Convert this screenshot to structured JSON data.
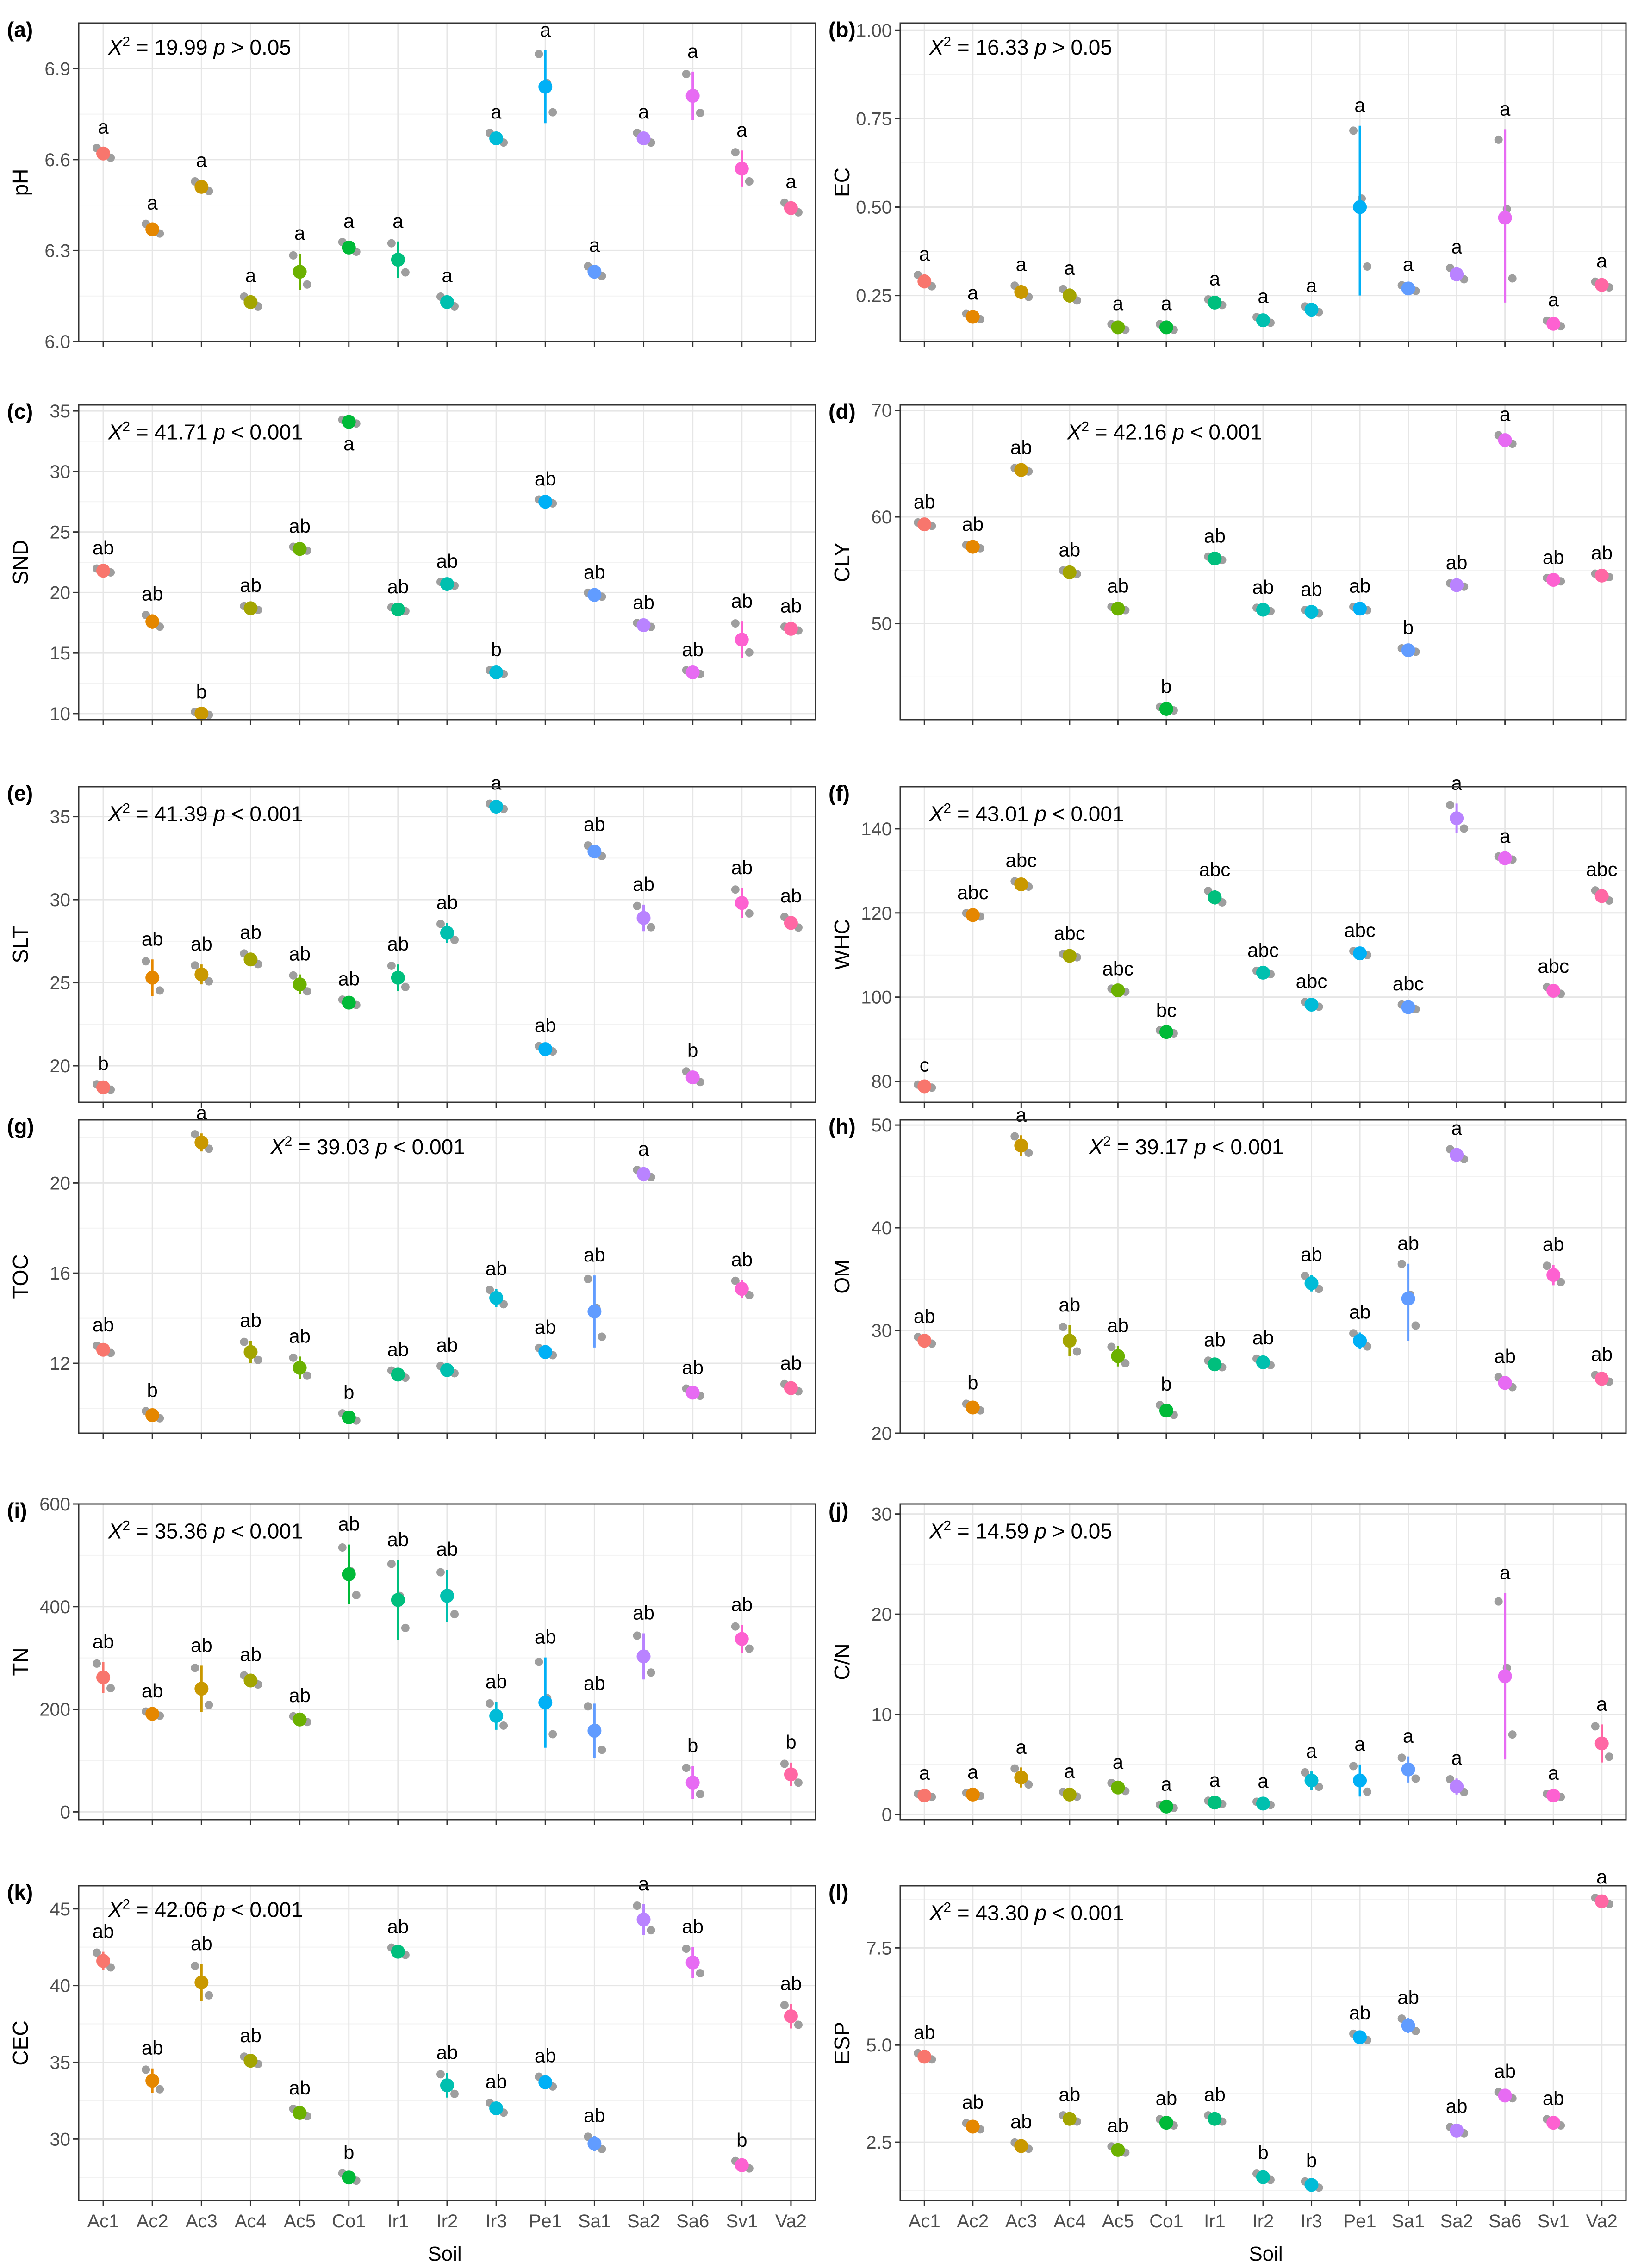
{
  "figure": {
    "x_axis_title": "Soil",
    "soils": [
      "Ac1",
      "Ac2",
      "Ac3",
      "Ac4",
      "Ac5",
      "Co1",
      "Ir1",
      "Ir2",
      "Ir3",
      "Pe1",
      "Sa1",
      "Sa2",
      "Sa6",
      "Sv1",
      "Va2"
    ],
    "soil_colors": [
      "#F8766D",
      "#E58700",
      "#C99800",
      "#A3A500",
      "#6BB100",
      "#00BA38",
      "#00BF7D",
      "#00C0AF",
      "#00BCD8",
      "#00B0F6",
      "#619CFF",
      "#B983FF",
      "#E76BF3",
      "#FD61D1",
      "#FF67A4"
    ],
    "raw_point_color": "#9e9e9e"
  },
  "chart_data": [
    {
      "type": "scatter",
      "panel": "(a)",
      "ylabel": "pH",
      "ylim": [
        6.0,
        7.05
      ],
      "yticks": [
        6.0,
        6.3,
        6.6,
        6.9
      ],
      "tick_labels": [
        "6.0",
        "6.3",
        "6.6",
        "6.9"
      ],
      "stat": {
        "symbol": "X",
        "sup": "2",
        "value": "= 19.99",
        "p": "p",
        "cmp": "> 0.05"
      },
      "means": [
        6.62,
        6.37,
        6.51,
        6.13,
        6.23,
        6.31,
        6.27,
        6.13,
        6.67,
        6.84,
        6.23,
        6.67,
        6.81,
        6.57,
        6.44
      ],
      "lower": [
        6.6,
        6.35,
        6.49,
        6.11,
        6.17,
        6.29,
        6.21,
        6.11,
        6.65,
        6.72,
        6.21,
        6.65,
        6.73,
        6.51,
        6.42
      ],
      "upper": [
        6.64,
        6.39,
        6.53,
        6.15,
        6.29,
        6.33,
        6.33,
        6.15,
        6.69,
        6.96,
        6.25,
        6.69,
        6.89,
        6.63,
        6.46
      ],
      "letters": [
        "a",
        "a",
        "a",
        "a",
        "a",
        "a",
        "a",
        "a",
        "a",
        "a",
        "a",
        "a",
        "a",
        "a",
        "a"
      ]
    },
    {
      "type": "scatter",
      "panel": "(b)",
      "ylabel": "EC",
      "ylim": [
        0.12,
        1.02
      ],
      "yticks": [
        0.25,
        0.5,
        0.75,
        1.0
      ],
      "tick_labels": [
        "0.25",
        "0.50",
        "0.75",
        "1.00"
      ],
      "stat": {
        "symbol": "X",
        "sup": "2",
        "value": "= 16.33",
        "p": "p",
        "cmp": "> 0.05"
      },
      "means": [
        0.29,
        0.19,
        0.26,
        0.25,
        0.16,
        0.16,
        0.23,
        0.18,
        0.21,
        0.5,
        0.27,
        0.31,
        0.47,
        0.17,
        0.28
      ],
      "lower": [
        0.27,
        0.18,
        0.24,
        0.23,
        0.15,
        0.15,
        0.22,
        0.17,
        0.2,
        0.25,
        0.26,
        0.29,
        0.23,
        0.16,
        0.27
      ],
      "upper": [
        0.31,
        0.2,
        0.28,
        0.27,
        0.17,
        0.17,
        0.24,
        0.19,
        0.22,
        0.73,
        0.28,
        0.33,
        0.72,
        0.18,
        0.29
      ],
      "letters": [
        "a",
        "a",
        "a",
        "a",
        "a",
        "a",
        "a",
        "a",
        "a",
        "a",
        "a",
        "a",
        "a",
        "a",
        "a"
      ]
    },
    {
      "type": "scatter",
      "panel": "(c)",
      "ylabel": "SND",
      "ylim": [
        9.5,
        35.5
      ],
      "yticks": [
        10,
        15,
        20,
        25,
        30,
        35
      ],
      "tick_labels": [
        "10",
        "15",
        "20",
        "25",
        "30",
        "35"
      ],
      "stat": {
        "symbol": "X",
        "sup": "2",
        "value": "= 41.71",
        "p": "p",
        "cmp": "< 0.001"
      },
      "means": [
        21.8,
        17.6,
        10.0,
        18.7,
        23.6,
        34.1,
        18.6,
        20.7,
        13.4,
        27.5,
        19.8,
        17.3,
        13.4,
        16.1,
        17.0
      ],
      "lower": [
        21.6,
        17.0,
        9.9,
        18.5,
        23.4,
        33.9,
        18.4,
        20.5,
        13.2,
        27.3,
        19.6,
        17.1,
        13.2,
        14.6,
        16.8
      ],
      "upper": [
        22.0,
        18.2,
        10.1,
        18.9,
        23.8,
        34.3,
        18.8,
        20.9,
        13.6,
        27.7,
        20.0,
        17.5,
        13.6,
        17.6,
        17.2
      ],
      "letters": [
        "ab",
        "ab",
        "b",
        "ab",
        "ab",
        "a",
        "ab",
        "ab",
        "b",
        "ab",
        "ab",
        "ab",
        "ab",
        "ab",
        "ab"
      ]
    },
    {
      "type": "scatter",
      "panel": "(d)",
      "ylabel": "CLY",
      "ylim": [
        41,
        70.5
      ],
      "yticks": [
        50,
        60,
        70
      ],
      "tick_labels": [
        "50",
        "60",
        "70"
      ],
      "stat": {
        "symbol": "X",
        "sup": "2",
        "value": "= 42.16",
        "p": "p",
        "cmp": "< 0.001"
      },
      "means": [
        59.3,
        57.2,
        64.4,
        54.8,
        51.4,
        42.0,
        56.1,
        51.3,
        51.1,
        51.4,
        47.5,
        53.6,
        67.2,
        54.1,
        54.5
      ],
      "lower": [
        59.1,
        57.0,
        64.2,
        54.6,
        51.2,
        41.8,
        55.9,
        51.1,
        50.9,
        51.2,
        47.3,
        53.4,
        66.7,
        53.9,
        54.3
      ],
      "upper": [
        59.5,
        57.4,
        64.6,
        55.0,
        51.6,
        42.2,
        56.3,
        51.5,
        51.3,
        51.6,
        47.7,
        53.8,
        67.7,
        54.3,
        54.7
      ],
      "letters": [
        "ab",
        "ab",
        "ab",
        "ab",
        "ab",
        "b",
        "ab",
        "ab",
        "ab",
        "ab",
        "b",
        "ab",
        "a",
        "ab",
        "ab"
      ]
    },
    {
      "type": "scatter",
      "panel": "(e)",
      "ylabel": "SLT",
      "ylim": [
        17.8,
        36.8
      ],
      "yticks": [
        20,
        25,
        30,
        35
      ],
      "tick_labels": [
        "20",
        "25",
        "30",
        "35"
      ],
      "stat": {
        "symbol": "X",
        "sup": "2",
        "value": "= 41.39",
        "p": "p",
        "cmp": "< 0.001"
      },
      "means": [
        18.7,
        25.3,
        25.5,
        26.4,
        24.9,
        23.8,
        25.3,
        28.0,
        35.6,
        21.0,
        32.9,
        28.9,
        19.3,
        29.8,
        28.6
      ],
      "lower": [
        18.5,
        24.2,
        24.9,
        26.0,
        24.3,
        23.6,
        24.5,
        27.4,
        35.4,
        20.8,
        32.5,
        28.1,
        18.9,
        28.9,
        28.2
      ],
      "upper": [
        18.9,
        26.4,
        26.1,
        26.8,
        25.5,
        24.0,
        26.1,
        28.6,
        35.8,
        21.2,
        33.3,
        29.7,
        19.7,
        30.7,
        29.0
      ],
      "letters": [
        "b",
        "ab",
        "ab",
        "ab",
        "ab",
        "ab",
        "ab",
        "ab",
        "a",
        "ab",
        "ab",
        "ab",
        "b",
        "ab",
        "ab"
      ]
    },
    {
      "type": "scatter",
      "panel": "(f)",
      "ylabel": "WHC",
      "ylim": [
        75,
        150
      ],
      "yticks": [
        80,
        100,
        120,
        140
      ],
      "tick_labels": [
        "80",
        "100",
        "120",
        "140"
      ],
      "stat": {
        "symbol": "X",
        "sup": "2",
        "value": "= 43.01",
        "p": "p",
        "cmp": "< 0.001"
      },
      "means": [
        78.8,
        119.5,
        126.8,
        109.8,
        101.6,
        91.7,
        123.7,
        105.8,
        98.2,
        110.4,
        97.6,
        142.5,
        133.0,
        101.5,
        124.0
      ],
      "lower": [
        78.6,
        119.0,
        126.0,
        109.3,
        101.3,
        91.4,
        122.0,
        105.3,
        97.5,
        109.8,
        96.9,
        139.0,
        132.6,
        100.5,
        122.5
      ],
      "upper": [
        79.0,
        120.0,
        127.6,
        110.3,
        101.9,
        92.0,
        125.4,
        106.3,
        98.9,
        111.0,
        98.3,
        146.0,
        133.4,
        102.5,
        125.5
      ],
      "letters": [
        "c",
        "abc",
        "abc",
        "abc",
        "abc",
        "bc",
        "abc",
        "abc",
        "abc",
        "abc",
        "abc",
        "a",
        "a",
        "abc",
        "abc"
      ]
    },
    {
      "type": "scatter",
      "panel": "(g)",
      "ylabel": "TOC",
      "ylim": [
        8.9,
        22.8
      ],
      "yticks": [
        12,
        16,
        20
      ],
      "tick_labels": [
        "12",
        "16",
        "20"
      ],
      "stat": {
        "symbol": "X",
        "sup": "2",
        "value": "= 39.03",
        "p": "p",
        "cmp": "< 0.001"
      },
      "means": [
        12.6,
        9.7,
        21.8,
        12.5,
        11.8,
        9.6,
        11.5,
        11.7,
        14.9,
        12.5,
        14.3,
        20.4,
        10.7,
        15.3,
        10.9
      ],
      "lower": [
        12.4,
        9.5,
        21.4,
        12.0,
        11.3,
        9.4,
        11.3,
        11.5,
        14.5,
        12.3,
        12.7,
        20.2,
        10.5,
        14.9,
        10.7
      ],
      "upper": [
        12.8,
        9.9,
        22.2,
        13.0,
        12.3,
        9.8,
        11.7,
        11.9,
        15.3,
        12.7,
        15.9,
        20.6,
        10.9,
        15.7,
        11.1
      ],
      "letters": [
        "ab",
        "b",
        "a",
        "ab",
        "ab",
        "b",
        "ab",
        "ab",
        "ab",
        "ab",
        "ab",
        "a",
        "ab",
        "ab",
        "ab"
      ]
    },
    {
      "type": "scatter",
      "panel": "(h)",
      "ylabel": "OM",
      "ylim": [
        20,
        50.5
      ],
      "yticks": [
        20,
        30,
        40,
        50
      ],
      "tick_labels": [
        "20",
        "30",
        "40",
        "50"
      ],
      "stat": {
        "symbol": "X",
        "sup": "2",
        "value": "= 39.17",
        "p": "p",
        "cmp": "< 0.001"
      },
      "means": [
        29.0,
        22.5,
        48.0,
        29.0,
        27.5,
        22.2,
        26.7,
        26.9,
        34.6,
        29.0,
        33.1,
        47.1,
        24.9,
        35.4,
        25.3
      ],
      "lower": [
        28.6,
        22.1,
        47.0,
        27.5,
        26.5,
        21.6,
        26.3,
        26.5,
        33.8,
        28.2,
        29.0,
        46.5,
        24.3,
        34.4,
        24.9
      ],
      "upper": [
        29.4,
        22.9,
        49.0,
        30.5,
        28.5,
        22.8,
        27.1,
        27.3,
        35.4,
        29.8,
        36.5,
        47.7,
        25.5,
        36.4,
        25.7
      ],
      "letters": [
        "ab",
        "b",
        "a",
        "ab",
        "ab",
        "b",
        "ab",
        "ab",
        "ab",
        "ab",
        "ab",
        "a",
        "ab",
        "ab",
        "ab"
      ]
    },
    {
      "type": "scatter",
      "panel": "(i)",
      "ylabel": "TN",
      "ylim": [
        -15,
        600
      ],
      "yticks": [
        0,
        200,
        400,
        600
      ],
      "tick_labels": [
        "0",
        "200",
        "400",
        "600"
      ],
      "stat": {
        "symbol": "X",
        "sup": "2",
        "value": "= 35.36",
        "p": "p",
        "cmp": "< 0.001"
      },
      "means": [
        262,
        191,
        240,
        256,
        180,
        463,
        413,
        421,
        187,
        213,
        158,
        303,
        57,
        337,
        73
      ],
      "lower": [
        232,
        186,
        195,
        245,
        173,
        405,
        335,
        370,
        160,
        125,
        105,
        258,
        25,
        310,
        50
      ],
      "upper": [
        292,
        196,
        285,
        267,
        187,
        521,
        491,
        472,
        214,
        301,
        211,
        348,
        89,
        364,
        96
      ],
      "letters": [
        "ab",
        "ab",
        "ab",
        "ab",
        "ab",
        "ab",
        "ab",
        "ab",
        "ab",
        "ab",
        "ab",
        "ab",
        "b",
        "ab",
        "b"
      ]
    },
    {
      "type": "scatter",
      "panel": "(j)",
      "ylabel": "C/N",
      "ylim": [
        -0.5,
        31
      ],
      "yticks": [
        0,
        10,
        20,
        30
      ],
      "tick_labels": [
        "0",
        "10",
        "20",
        "30"
      ],
      "stat": {
        "symbol": "X",
        "sup": "2",
        "value": "= 14.59",
        "p": "p",
        "cmp": "> 0.05"
      },
      "means": [
        1.9,
        2.0,
        3.7,
        2.0,
        2.7,
        0.8,
        1.2,
        1.1,
        3.4,
        3.4,
        4.5,
        2.8,
        13.8,
        1.9,
        7.1
      ],
      "lower": [
        1.7,
        1.8,
        2.7,
        1.7,
        2.2,
        0.6,
        1.0,
        0.9,
        2.5,
        1.8,
        3.2,
        2.0,
        5.5,
        1.7,
        5.2
      ],
      "upper": [
        2.1,
        2.2,
        4.7,
        2.3,
        3.2,
        1.0,
        1.4,
        1.3,
        4.3,
        5.0,
        5.8,
        3.6,
        22.1,
        2.1,
        9.0
      ],
      "letters": [
        "a",
        "a",
        "a",
        "a",
        "a",
        "a",
        "a",
        "a",
        "a",
        "a",
        "a",
        "a",
        "a",
        "a",
        "a"
      ]
    },
    {
      "type": "scatter",
      "panel": "(k)",
      "ylabel": "CEC",
      "ylim": [
        26,
        46.5
      ],
      "yticks": [
        30,
        35,
        40,
        45
      ],
      "tick_labels": [
        "30",
        "35",
        "40",
        "45"
      ],
      "stat": {
        "symbol": "X",
        "sup": "2",
        "value": "= 42.06",
        "p": "p",
        "cmp": "< 0.001"
      },
      "means": [
        41.6,
        33.8,
        40.2,
        35.1,
        31.7,
        27.5,
        42.2,
        33.5,
        32.0,
        33.7,
        29.7,
        44.3,
        41.5,
        28.3,
        38.0
      ],
      "lower": [
        41.0,
        33.0,
        39.0,
        34.8,
        31.4,
        27.2,
        41.9,
        32.7,
        31.6,
        33.3,
        29.2,
        43.3,
        40.5,
        28.0,
        37.2
      ],
      "upper": [
        42.2,
        34.6,
        41.4,
        35.4,
        32.0,
        27.8,
        42.5,
        34.3,
        32.4,
        34.1,
        30.2,
        45.3,
        42.5,
        28.6,
        38.8
      ],
      "letters": [
        "ab",
        "ab",
        "ab",
        "ab",
        "ab",
        "b",
        "ab",
        "ab",
        "ab",
        "ab",
        "ab",
        "a",
        "ab",
        "b",
        "ab"
      ]
    },
    {
      "type": "scatter",
      "panel": "(l)",
      "ylabel": "ESP",
      "ylim": [
        1.0,
        9.1
      ],
      "yticks": [
        2.5,
        5.0,
        7.5
      ],
      "tick_labels": [
        "2.5",
        "5.0",
        "7.5"
      ],
      "stat": {
        "symbol": "X",
        "sup": "2",
        "value": "= 43.30",
        "p": "p",
        "cmp": "< 0.001"
      },
      "means": [
        4.7,
        2.9,
        2.4,
        3.1,
        2.3,
        3.0,
        3.1,
        1.6,
        1.4,
        5.2,
        5.5,
        2.8,
        3.7,
        3.0,
        8.7
      ],
      "lower": [
        4.6,
        2.8,
        2.3,
        3.0,
        2.2,
        2.9,
        3.0,
        1.5,
        1.3,
        5.1,
        5.3,
        2.7,
        3.6,
        2.9,
        8.6
      ],
      "upper": [
        4.8,
        3.0,
        2.5,
        3.2,
        2.4,
        3.1,
        3.2,
        1.7,
        1.5,
        5.3,
        5.7,
        2.9,
        3.8,
        3.1,
        8.8
      ],
      "letters": [
        "ab",
        "ab",
        "ab",
        "ab",
        "ab",
        "ab",
        "ab",
        "b",
        "b",
        "ab",
        "ab",
        "ab",
        "ab",
        "ab",
        "a"
      ]
    }
  ]
}
